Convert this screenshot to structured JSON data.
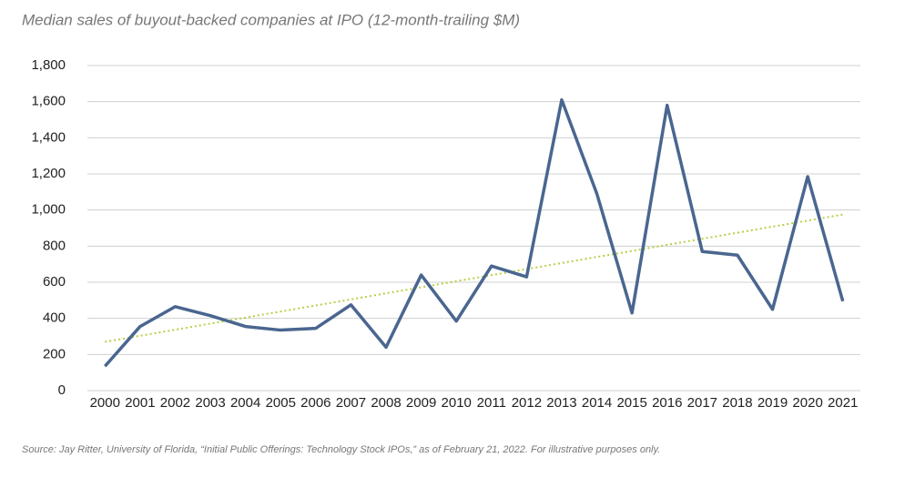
{
  "chart_data": {
    "type": "line",
    "title": "Median sales of buyout-backed companies at IPO (12-month-trailing $M)",
    "source": "Source: Jay Ritter, University of Florida, “Initial Public Offerings: Technology Stock IPOs,” as of February 21, 2022. For illustrative purposes only.",
    "categories": [
      "2000",
      "2001",
      "2002",
      "2003",
      "2004",
      "2005",
      "2006",
      "2007",
      "2008",
      "2009",
      "2010",
      "2011",
      "2012",
      "2013",
      "2014",
      "2015",
      "2016",
      "2017",
      "2018",
      "2019",
      "2020",
      "2021"
    ],
    "values": [
      135,
      355,
      465,
      415,
      355,
      335,
      345,
      475,
      240,
      640,
      385,
      690,
      630,
      1610,
      1090,
      430,
      1580,
      770,
      750,
      450,
      1185,
      495
    ],
    "color": "#4a6690",
    "trendline": {
      "values": [
        270,
        975
      ],
      "color": "#b8cf45"
    },
    "ylim": [
      0,
      1800
    ],
    "yticks": [
      0,
      200,
      400,
      600,
      800,
      {
        "value": 1000,
        "label": "1,000"
      },
      {
        "value": 1200,
        "label": "1,200"
      },
      {
        "value": 1400,
        "label": "1,400"
      },
      {
        "value": 1600,
        "label": "1,600"
      },
      {
        "value": 1800,
        "label": "1,800"
      }
    ],
    "grid": true
  }
}
